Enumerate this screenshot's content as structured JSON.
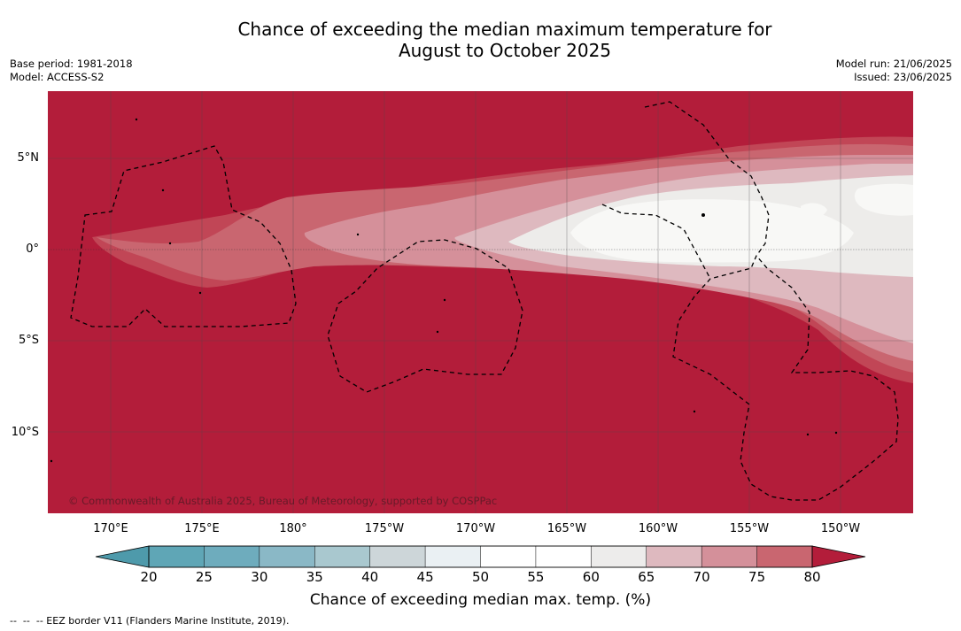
{
  "title": {
    "line1": "Chance of exceeding the median maximum temperature for",
    "line2": "August to October 2025"
  },
  "meta": {
    "base_period": "Base period: 1981-2018",
    "model": "Model: ACCESS-S2",
    "model_run": "Model run: 21/06/2025",
    "issued": "Issued: 23/06/2025"
  },
  "map": {
    "lat_labels": [
      "5°N",
      "0°",
      "5°S",
      "10°S"
    ],
    "lon_labels": [
      "170°E",
      "175°E",
      "180°",
      "175°W",
      "170°W",
      "165°W",
      "160°W",
      "155°W",
      "150°W"
    ],
    "copyright": "© Commonwealth of Australia 2025, Bureau of Meteorology, supported by COSPPac",
    "colors": {
      "above80": "#b31d3a",
      "c75_80": "#c14656",
      "c70_75": "#c96670",
      "c65_70": "#d5909a",
      "c60_65": "#deb9bf",
      "c55_60": "#edecea",
      "c50_55": "#f6f6f4",
      "ocean_dark": "#b31d3a"
    }
  },
  "colorbar": {
    "ticks": [
      "20",
      "25",
      "30",
      "35",
      "40",
      "45",
      "50",
      "55",
      "60",
      "65",
      "70",
      "75",
      "80"
    ],
    "colors": [
      "#5fa6b6",
      "#6eacbd",
      "#8ab8c6",
      "#a9c8cf",
      "#cdd6d9",
      "#eaf0f3",
      "#ffffff",
      "#ffffff",
      "#edeceb",
      "#deb9bf",
      "#d4909a",
      "#c96670",
      "#c14656"
    ],
    "under_color": "#4e9aab",
    "over_color": "#b31d3a",
    "label": "Chance of exceeding median max. temp. (%)"
  },
  "footnote": "--  --  -- EEZ border V11 (Flanders Marine Institute, 2019)."
}
